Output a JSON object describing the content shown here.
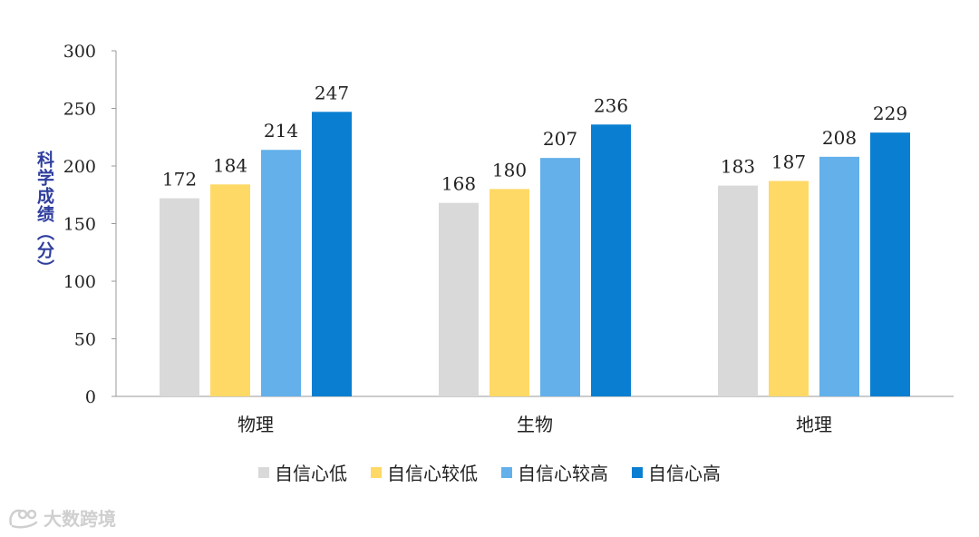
{
  "chart_data": {
    "type": "bar",
    "title": "",
    "xlabel": "",
    "ylabel": "科学成绩（分）",
    "ylim": [
      0,
      300
    ],
    "yticks": [
      0,
      50,
      100,
      150,
      200,
      250,
      300
    ],
    "categories": [
      "物理",
      "生物",
      "地理"
    ],
    "series": [
      {
        "name": "自信心低",
        "color": "#d9d9d9",
        "values": [
          172,
          168,
          183
        ]
      },
      {
        "name": "自信心较低",
        "color": "#ffd966",
        "values": [
          184,
          180,
          187
        ]
      },
      {
        "name": "自信心较高",
        "color": "#63b0ea",
        "values": [
          214,
          207,
          208
        ]
      },
      {
        "name": "自信心高",
        "color": "#0a7fd1",
        "values": [
          247,
          236,
          229
        ]
      }
    ],
    "grid": false,
    "legend_position": "bottom",
    "data_labels": true
  },
  "watermark": {
    "text": "大数跨境",
    "icon": "brand-logo-icon"
  }
}
